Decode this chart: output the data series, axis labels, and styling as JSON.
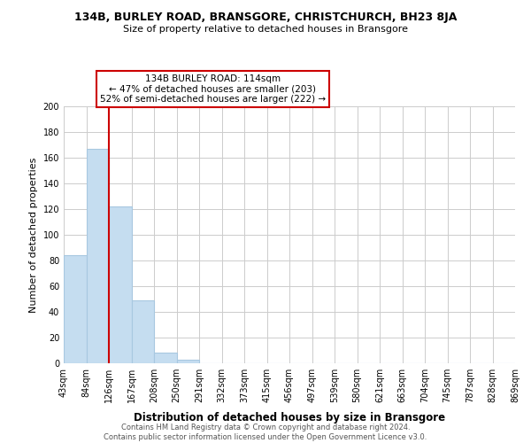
{
  "title": "134B, BURLEY ROAD, BRANSGORE, CHRISTCHURCH, BH23 8JA",
  "subtitle": "Size of property relative to detached houses in Bransgore",
  "bar_values": [
    84,
    167,
    122,
    49,
    8,
    3,
    0,
    0,
    0,
    0,
    0,
    0,
    0,
    0,
    0,
    0,
    0,
    0,
    0,
    0
  ],
  "x_labels": [
    "43sqm",
    "84sqm",
    "126sqm",
    "167sqm",
    "208sqm",
    "250sqm",
    "291sqm",
    "332sqm",
    "373sqm",
    "415sqm",
    "456sqm",
    "497sqm",
    "539sqm",
    "580sqm",
    "621sqm",
    "663sqm",
    "704sqm",
    "745sqm",
    "787sqm",
    "828sqm",
    "869sqm"
  ],
  "bar_color": "#c5ddf0",
  "bar_edge_color": "#a8c8e0",
  "ylabel": "Number of detached properties",
  "xlabel": "Distribution of detached houses by size in Bransgore",
  "ylim": [
    0,
    200
  ],
  "yticks": [
    0,
    20,
    40,
    60,
    80,
    100,
    120,
    140,
    160,
    180,
    200
  ],
  "property_line_color": "#cc0000",
  "annotation_title": "134B BURLEY ROAD: 114sqm",
  "annotation_line1": "← 47% of detached houses are smaller (203)",
  "annotation_line2": "52% of semi-detached houses are larger (222) →",
  "annotation_box_color": "#ffffff",
  "annotation_box_edge": "#cc0000",
  "footer_line1": "Contains HM Land Registry data © Crown copyright and database right 2024.",
  "footer_line2": "Contains public sector information licensed under the Open Government Licence v3.0.",
  "background_color": "#ffffff",
  "grid_color": "#cccccc"
}
